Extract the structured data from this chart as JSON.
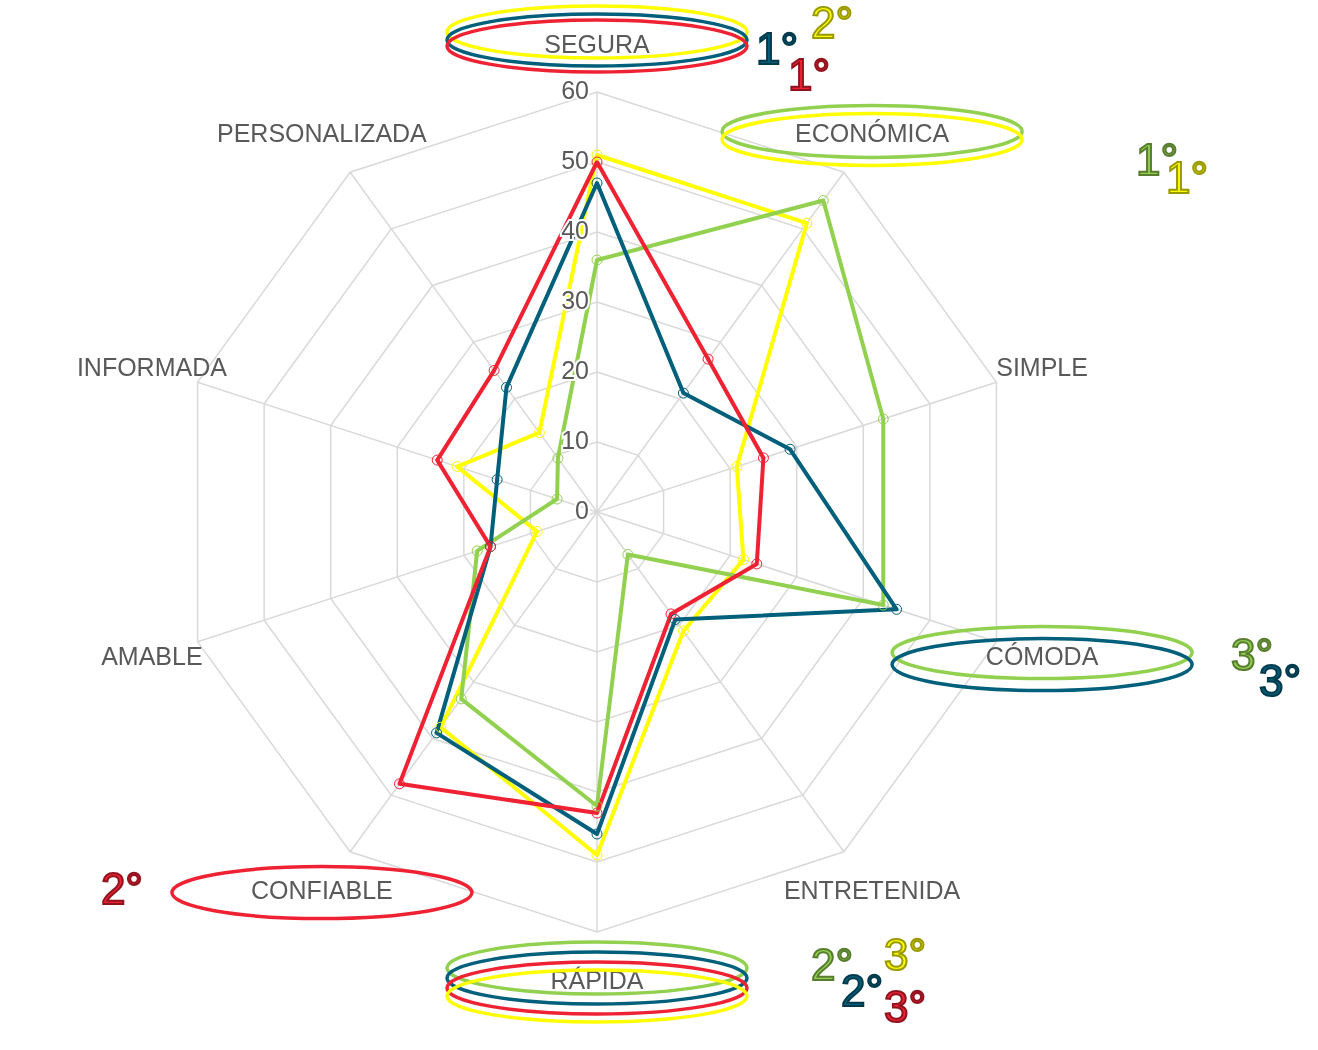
{
  "chart_data": {
    "type": "radar",
    "categories": [
      "SEGURA",
      "ECONÓMICA",
      "SIMPLE",
      "CÓMODA",
      "ENTRETENIDA",
      "RÁPIDA",
      "CONFIABLE",
      "AMABLE",
      "INFORMADA",
      "PERSONALIZADA"
    ],
    "series": [
      {
        "color": "#ffff00",
        "values": [
          51,
          51,
          21,
          22,
          21,
          49,
          38,
          9,
          21,
          14
        ]
      },
      {
        "color": "#92d050",
        "values": [
          36,
          55,
          43,
          43,
          7.5,
          42,
          33,
          18,
          6,
          9.5
        ]
      },
      {
        "color": "#005f7a",
        "values": [
          47,
          21,
          29,
          45,
          19,
          46,
          39,
          16,
          15,
          22
        ]
      },
      {
        "color": "#ee2233",
        "values": [
          50,
          27,
          25,
          24,
          18,
          43,
          48,
          16,
          24,
          25
        ]
      }
    ],
    "ylim": [
      0,
      60
    ],
    "yticks": [
      0,
      10,
      20,
      30,
      40,
      50,
      60
    ],
    "grid": true,
    "marker": "circle",
    "annotations": [
      "2°",
      "1°",
      "1°",
      "1°",
      "1°",
      "3°",
      "3°",
      "2°",
      "2°",
      "3°",
      "2°",
      "3°"
    ]
  }
}
